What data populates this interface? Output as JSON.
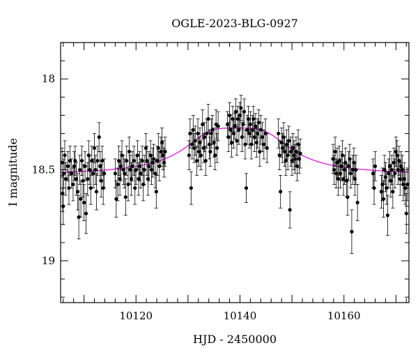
{
  "chart_data": {
    "type": "scatter",
    "title": "OGLE-2023-BLG-0927",
    "xlabel": "HJD - 2450000",
    "ylabel": "I magnitude",
    "xlim": [
      10105.5,
      10172.5
    ],
    "ylim": [
      19.23,
      17.8
    ],
    "y_inverted": true,
    "x_major_ticks": [
      10120,
      10140,
      10160
    ],
    "x_tick_labels": [
      "10120",
      "10140",
      "10160"
    ],
    "x_minor_step": 2,
    "y_major_ticks": [
      18,
      18.5,
      19
    ],
    "y_tick_labels": [
      "18",
      "18.5",
      "19"
    ],
    "y_minor_step": 0.1,
    "grid": false,
    "marker_color": "#000000",
    "model_color": "#e000e0",
    "model": {
      "peak_time": 10139.5,
      "baseline_mag": 18.53,
      "peak_mag": 18.27,
      "timescale_days": 8.5
    },
    "series": [
      {
        "values": [
          [
            10105.8,
            18.46,
            0.08
          ],
          [
            10105.9,
            18.63,
            0.1
          ],
          [
            10106.0,
            18.7,
            0.1
          ],
          [
            10106.1,
            18.52,
            0.08
          ],
          [
            10106.3,
            18.42,
            0.08
          ],
          [
            10106.5,
            18.55,
            0.09
          ],
          [
            10106.9,
            18.48,
            0.08
          ],
          [
            10107.1,
            18.6,
            0.09
          ],
          [
            10107.3,
            18.45,
            0.08
          ],
          [
            10107.6,
            18.52,
            0.08
          ],
          [
            10107.9,
            18.58,
            0.09
          ],
          [
            10108.1,
            18.48,
            0.08
          ],
          [
            10108.3,
            18.45,
            0.08
          ],
          [
            10108.5,
            18.55,
            0.09
          ],
          [
            10108.8,
            18.62,
            0.1
          ],
          [
            10109.0,
            18.76,
            0.12
          ],
          [
            10109.2,
            18.5,
            0.08
          ],
          [
            10109.4,
            18.66,
            0.1
          ],
          [
            10109.6,
            18.45,
            0.08
          ],
          [
            10109.8,
            18.56,
            0.09
          ],
          [
            10110.0,
            18.68,
            0.1
          ],
          [
            10110.2,
            18.48,
            0.08
          ],
          [
            10110.4,
            18.74,
            0.11
          ],
          [
            10110.7,
            18.55,
            0.09
          ],
          [
            10110.9,
            18.42,
            0.08
          ],
          [
            10111.1,
            18.5,
            0.08
          ],
          [
            10111.3,
            18.6,
            0.09
          ],
          [
            10111.5,
            18.45,
            0.08
          ],
          [
            10111.8,
            18.52,
            0.08
          ],
          [
            10112.0,
            18.38,
            0.08
          ],
          [
            10112.2,
            18.5,
            0.08
          ],
          [
            10112.4,
            18.62,
            0.1
          ],
          [
            10112.6,
            18.45,
            0.08
          ],
          [
            10112.9,
            18.32,
            0.08
          ],
          [
            10113.1,
            18.48,
            0.08
          ],
          [
            10113.3,
            18.56,
            0.09
          ],
          [
            10113.5,
            18.45,
            0.08
          ],
          [
            10113.7,
            18.6,
            0.09
          ],
          [
            10113.9,
            18.52,
            0.08
          ],
          [
            10116.0,
            18.52,
            0.08
          ],
          [
            10116.2,
            18.66,
            0.1
          ],
          [
            10116.5,
            18.58,
            0.09
          ],
          [
            10116.7,
            18.45,
            0.08
          ],
          [
            10116.9,
            18.55,
            0.09
          ],
          [
            10117.1,
            18.48,
            0.08
          ],
          [
            10117.3,
            18.42,
            0.08
          ],
          [
            10117.6,
            18.5,
            0.08
          ],
          [
            10117.8,
            18.52,
            0.08
          ],
          [
            10118.0,
            18.65,
            0.1
          ],
          [
            10118.2,
            18.45,
            0.08
          ],
          [
            10118.5,
            18.58,
            0.09
          ],
          [
            10118.7,
            18.4,
            0.08
          ],
          [
            10118.9,
            18.5,
            0.08
          ],
          [
            10119.1,
            18.55,
            0.09
          ],
          [
            10119.3,
            18.48,
            0.08
          ],
          [
            10119.6,
            18.45,
            0.08
          ],
          [
            10119.8,
            18.6,
            0.09
          ],
          [
            10120.0,
            18.5,
            0.08
          ],
          [
            10120.3,
            18.42,
            0.08
          ],
          [
            10120.5,
            18.55,
            0.09
          ],
          [
            10120.7,
            18.48,
            0.08
          ],
          [
            10120.9,
            18.52,
            0.08
          ],
          [
            10121.2,
            18.45,
            0.08
          ],
          [
            10121.4,
            18.58,
            0.09
          ],
          [
            10121.6,
            18.5,
            0.08
          ],
          [
            10121.9,
            18.38,
            0.08
          ],
          [
            10122.1,
            18.45,
            0.08
          ],
          [
            10122.3,
            18.55,
            0.09
          ],
          [
            10122.5,
            18.48,
            0.08
          ],
          [
            10122.8,
            18.42,
            0.08
          ],
          [
            10123.0,
            18.5,
            0.08
          ],
          [
            10123.2,
            18.46,
            0.08
          ],
          [
            10123.4,
            18.44,
            0.08
          ],
          [
            10123.7,
            18.52,
            0.08
          ],
          [
            10123.9,
            18.62,
            0.09
          ],
          [
            10124.1,
            18.45,
            0.08
          ],
          [
            10124.3,
            18.38,
            0.08
          ],
          [
            10124.5,
            18.48,
            0.08
          ],
          [
            10124.8,
            18.4,
            0.08
          ],
          [
            10125.0,
            18.35,
            0.08
          ],
          [
            10125.2,
            18.42,
            0.08
          ],
          [
            10125.4,
            18.46,
            0.08
          ],
          [
            10125.6,
            18.4,
            0.08
          ],
          [
            10130.2,
            18.42,
            0.08
          ],
          [
            10130.4,
            18.3,
            0.08
          ],
          [
            10130.6,
            18.6,
            0.09
          ],
          [
            10130.8,
            18.36,
            0.08
          ],
          [
            10131.0,
            18.28,
            0.08
          ],
          [
            10131.2,
            18.38,
            0.08
          ],
          [
            10131.4,
            18.34,
            0.08
          ],
          [
            10131.7,
            18.45,
            0.08
          ],
          [
            10131.9,
            18.3,
            0.08
          ],
          [
            10132.1,
            18.4,
            0.08
          ],
          [
            10132.3,
            18.35,
            0.08
          ],
          [
            10132.5,
            18.42,
            0.08
          ],
          [
            10132.8,
            18.25,
            0.08
          ],
          [
            10133.0,
            18.38,
            0.08
          ],
          [
            10133.2,
            18.32,
            0.08
          ],
          [
            10133.4,
            18.45,
            0.08
          ],
          [
            10133.6,
            18.3,
            0.08
          ],
          [
            10133.9,
            18.22,
            0.08
          ],
          [
            10134.1,
            18.36,
            0.08
          ],
          [
            10134.3,
            18.4,
            0.08
          ],
          [
            10134.5,
            18.3,
            0.08
          ],
          [
            10134.7,
            18.28,
            0.08
          ],
          [
            10135.0,
            18.35,
            0.08
          ],
          [
            10135.2,
            18.42,
            0.08
          ],
          [
            10135.4,
            18.25,
            0.08
          ],
          [
            10135.6,
            18.38,
            0.08
          ],
          [
            10135.8,
            18.26,
            0.08
          ],
          [
            10137.6,
            18.25,
            0.07
          ],
          [
            10137.8,
            18.32,
            0.08
          ],
          [
            10138.0,
            18.2,
            0.07
          ],
          [
            10138.2,
            18.28,
            0.08
          ],
          [
            10138.4,
            18.35,
            0.08
          ],
          [
            10138.6,
            18.22,
            0.07
          ],
          [
            10138.8,
            18.3,
            0.08
          ],
          [
            10139.0,
            18.26,
            0.07
          ],
          [
            10139.2,
            18.18,
            0.07
          ],
          [
            10139.4,
            18.34,
            0.08
          ],
          [
            10139.6,
            18.22,
            0.07
          ],
          [
            10139.8,
            18.28,
            0.08
          ],
          [
            10140.0,
            18.2,
            0.07
          ],
          [
            10140.2,
            18.16,
            0.07
          ],
          [
            10140.4,
            18.32,
            0.08
          ],
          [
            10140.6,
            18.25,
            0.07
          ],
          [
            10140.8,
            18.18,
            0.07
          ],
          [
            10141.0,
            18.36,
            0.08
          ],
          [
            10141.2,
            18.6,
            0.08
          ],
          [
            10141.4,
            18.28,
            0.08
          ],
          [
            10141.6,
            18.22,
            0.07
          ],
          [
            10141.8,
            18.3,
            0.08
          ],
          [
            10142.0,
            18.25,
            0.07
          ],
          [
            10142.2,
            18.36,
            0.08
          ],
          [
            10142.4,
            18.28,
            0.08
          ],
          [
            10142.6,
            18.22,
            0.07
          ],
          [
            10142.8,
            18.32,
            0.08
          ],
          [
            10143.0,
            18.26,
            0.07
          ],
          [
            10143.2,
            18.35,
            0.08
          ],
          [
            10143.4,
            18.3,
            0.08
          ],
          [
            10143.6,
            18.24,
            0.07
          ],
          [
            10143.8,
            18.4,
            0.08
          ],
          [
            10144.0,
            18.28,
            0.08
          ],
          [
            10144.3,
            18.32,
            0.08
          ],
          [
            10144.6,
            18.36,
            0.08
          ],
          [
            10144.9,
            18.3,
            0.08
          ],
          [
            10145.2,
            18.38,
            0.08
          ],
          [
            10147.4,
            18.3,
            0.08
          ],
          [
            10147.6,
            18.42,
            0.08
          ],
          [
            10147.8,
            18.62,
            0.09
          ],
          [
            10148.0,
            18.35,
            0.08
          ],
          [
            10148.2,
            18.38,
            0.08
          ],
          [
            10148.4,
            18.32,
            0.08
          ],
          [
            10148.6,
            18.4,
            0.08
          ],
          [
            10148.8,
            18.45,
            0.08
          ],
          [
            10149.0,
            18.36,
            0.08
          ],
          [
            10149.2,
            18.42,
            0.08
          ],
          [
            10149.4,
            18.34,
            0.08
          ],
          [
            10149.6,
            18.72,
            0.1
          ],
          [
            10149.8,
            18.4,
            0.08
          ],
          [
            10150.0,
            18.45,
            0.08
          ],
          [
            10150.2,
            18.38,
            0.08
          ],
          [
            10150.4,
            18.42,
            0.08
          ],
          [
            10150.6,
            18.44,
            0.08
          ],
          [
            10150.8,
            18.4,
            0.08
          ],
          [
            10151.0,
            18.48,
            0.08
          ],
          [
            10151.2,
            18.36,
            0.08
          ],
          [
            10151.4,
            18.44,
            0.08
          ],
          [
            10151.6,
            18.41,
            0.08
          ],
          [
            10157.9,
            18.44,
            0.08
          ],
          [
            10158.1,
            18.5,
            0.08
          ],
          [
            10158.3,
            18.4,
            0.08
          ],
          [
            10158.5,
            18.52,
            0.08
          ],
          [
            10158.7,
            18.46,
            0.08
          ],
          [
            10158.9,
            18.55,
            0.09
          ],
          [
            10159.1,
            18.45,
            0.08
          ],
          [
            10159.3,
            18.52,
            0.08
          ],
          [
            10159.5,
            18.48,
            0.08
          ],
          [
            10159.7,
            18.42,
            0.08
          ],
          [
            10159.9,
            18.55,
            0.09
          ],
          [
            10160.1,
            18.5,
            0.08
          ],
          [
            10160.3,
            18.46,
            0.08
          ],
          [
            10160.5,
            18.56,
            0.09
          ],
          [
            10160.7,
            18.65,
            0.1
          ],
          [
            10160.9,
            18.48,
            0.08
          ],
          [
            10161.1,
            18.44,
            0.08
          ],
          [
            10161.3,
            18.52,
            0.08
          ],
          [
            10161.5,
            18.84,
            0.12
          ],
          [
            10161.7,
            18.5,
            0.08
          ],
          [
            10161.9,
            18.46,
            0.08
          ],
          [
            10162.1,
            18.55,
            0.09
          ],
          [
            10162.3,
            18.5,
            0.08
          ],
          [
            10162.6,
            18.68,
            0.1
          ],
          [
            10165.6,
            18.52,
            0.08
          ],
          [
            10165.8,
            18.6,
            0.09
          ],
          [
            10166.0,
            18.48,
            0.08
          ],
          [
            10167.2,
            18.62,
            0.09
          ],
          [
            10167.4,
            18.58,
            0.09
          ],
          [
            10167.6,
            18.66,
            0.1
          ],
          [
            10167.8,
            18.5,
            0.08
          ],
          [
            10168.0,
            18.54,
            0.08
          ],
          [
            10168.2,
            18.6,
            0.09
          ],
          [
            10168.4,
            18.75,
            0.11
          ],
          [
            10168.6,
            18.52,
            0.08
          ],
          [
            10168.8,
            18.48,
            0.08
          ],
          [
            10169.0,
            18.56,
            0.09
          ],
          [
            10169.2,
            18.5,
            0.08
          ],
          [
            10169.4,
            18.62,
            0.09
          ],
          [
            10169.6,
            18.46,
            0.08
          ],
          [
            10169.8,
            18.52,
            0.08
          ],
          [
            10170.0,
            18.4,
            0.08
          ],
          [
            10170.2,
            18.42,
            0.08
          ],
          [
            10170.4,
            18.5,
            0.08
          ],
          [
            10170.6,
            18.45,
            0.08
          ],
          [
            10170.8,
            18.55,
            0.09
          ],
          [
            10171.0,
            18.48,
            0.08
          ],
          [
            10171.2,
            18.5,
            0.08
          ],
          [
            10171.4,
            18.58,
            0.09
          ],
          [
            10171.6,
            18.55,
            0.09
          ],
          [
            10171.8,
            18.6,
            0.09
          ],
          [
            10172.0,
            18.74,
            0.11
          ],
          [
            10172.2,
            18.58,
            0.09
          ]
        ]
      }
    ]
  }
}
